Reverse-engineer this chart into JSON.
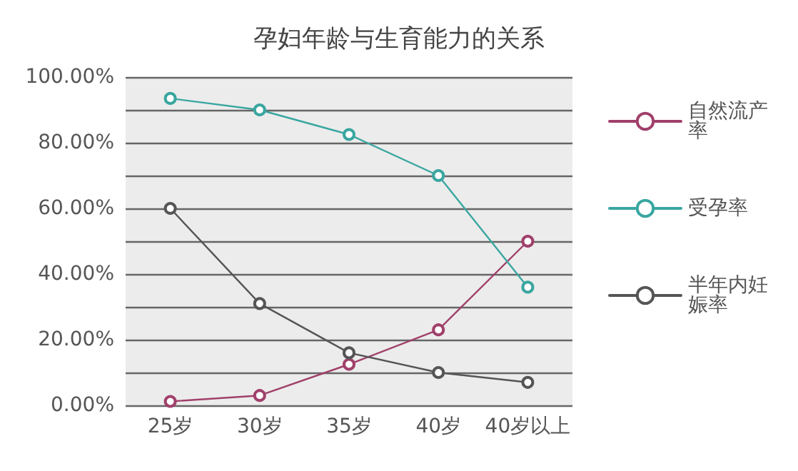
{
  "chart_data": {
    "type": "line",
    "title": "孕妇年龄与生育能力的关系",
    "categories": [
      "25岁",
      "30岁",
      "35岁",
      "40岁",
      "40岁以上"
    ],
    "series": [
      {
        "name": "自然流产率",
        "color": "#a0406a",
        "values": [
          1.2,
          3,
          12.5,
          23,
          50
        ]
      },
      {
        "name": "受孕率",
        "color": "#3aa6a0",
        "values": [
          93.5,
          90,
          82.5,
          70,
          36
        ]
      },
      {
        "name": "半年内妊娠率",
        "color": "#555555",
        "values": [
          60,
          31,
          16,
          10,
          7
        ]
      }
    ],
    "ylim": [
      0,
      100
    ],
    "yticks": [
      {
        "value": 0,
        "label": "0.00%"
      },
      {
        "value": 10,
        "label": null
      },
      {
        "value": 20,
        "label": "20.00%"
      },
      {
        "value": 30,
        "label": null
      },
      {
        "value": 40,
        "label": "40.00%"
      },
      {
        "value": 50,
        "label": null
      },
      {
        "value": 60,
        "label": "60.00%"
      },
      {
        "value": 70,
        "label": null
      },
      {
        "value": 80,
        "label": "80.00%"
      },
      {
        "value": 90,
        "label": null
      },
      {
        "value": 100,
        "label": "100.00%"
      }
    ],
    "grid": "y",
    "legend": "right",
    "marker": "circle",
    "line_style": "solid"
  }
}
